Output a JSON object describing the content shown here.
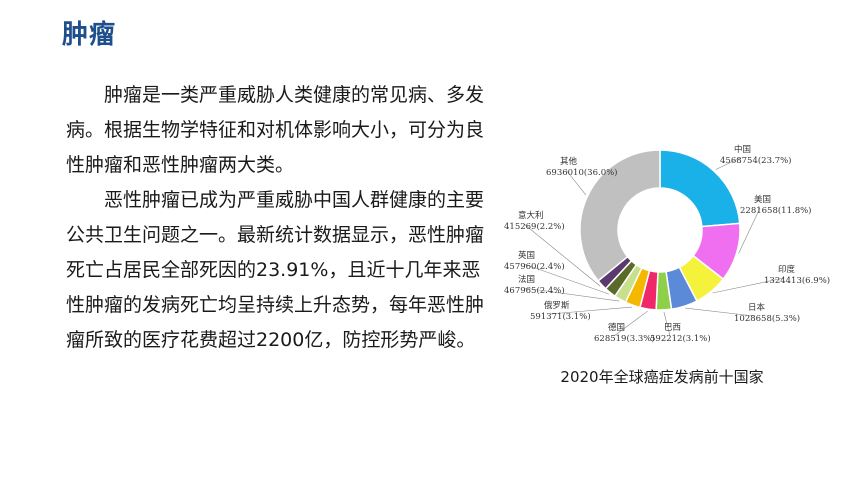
{
  "slide": {
    "title": "肿瘤",
    "paragraphs": [
      "肿瘤是一类严重威胁人类健康的常见病、多发病。根据生物学特征和对机体影响大小，可分为良性肿瘤和恶性肿瘤两大类。",
      "恶性肿瘤已成为严重威胁中国人群健康的主要公共卫生问题之一。最新统计数据显示，恶性肿瘤死亡占居民全部死因的23.91%，且近十几年来恶性肿瘤的发病死亡均呈持续上升态势，每年恶性肿瘤所致的医疗花费超过2200亿，防控形势严峻。"
    ]
  },
  "chart_data": {
    "type": "pie",
    "donut": true,
    "title": "2020年全球癌症发病前十国家",
    "series": [
      {
        "name": "中国",
        "value": 4568754,
        "label": "4568754(23.7%)",
        "color": "#1ab0e8"
      },
      {
        "name": "美国",
        "value": 2281658,
        "label": "2281658(11.8%)",
        "color": "#f06ef0"
      },
      {
        "name": "印度",
        "value": 1324413,
        "label": "1324413(6.9%)",
        "color": "#f5f23c"
      },
      {
        "name": "日本",
        "value": 1028658,
        "label": "1028658(5.3%)",
        "color": "#5b8ad8"
      },
      {
        "name": "巴西",
        "value": 592212,
        "label": "592212(3.1%)",
        "color": "#8fd04a"
      },
      {
        "name": "德国",
        "value": 628519,
        "label": "628519(3.3%)",
        "color": "#f0286a"
      },
      {
        "name": "俄罗斯",
        "value": 591371,
        "label": "591371(3.1%)",
        "color": "#f5b800"
      },
      {
        "name": "法国",
        "value": 467965,
        "label": "467965(2.4%)",
        "color": "#c8e08c"
      },
      {
        "name": "英国",
        "value": 457960,
        "label": "457960(2.4%)",
        "color": "#5a6a2a"
      },
      {
        "name": "意大利",
        "value": 415269,
        "label": "415269(2.2%)",
        "color": "#5a3a6e"
      },
      {
        "name": "其他",
        "value": 6936010,
        "label": "6936010(36.0%)",
        "color": "#c0c0c0"
      }
    ]
  }
}
